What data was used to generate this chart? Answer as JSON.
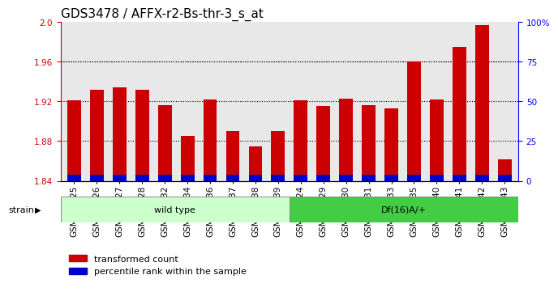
{
  "title": "GDS3478 / AFFX-r2-Bs-thr-3_s_at",
  "samples": [
    "GSM272325",
    "GSM272326",
    "GSM272327",
    "GSM272328",
    "GSM272332",
    "GSM272334",
    "GSM272336",
    "GSM272337",
    "GSM272338",
    "GSM272339",
    "GSM272324",
    "GSM272329",
    "GSM272330",
    "GSM272331",
    "GSM272333",
    "GSM272335",
    "GSM272340",
    "GSM272341",
    "GSM272342",
    "GSM272343"
  ],
  "red_values": [
    1.921,
    1.932,
    1.934,
    1.932,
    1.916,
    1.885,
    1.922,
    1.89,
    1.875,
    1.89,
    1.921,
    1.915,
    1.923,
    1.916,
    1.913,
    1.96,
    1.922,
    1.975,
    1.997,
    1.862
  ],
  "blue_values": [
    0.006,
    0.006,
    0.006,
    0.006,
    0.006,
    0.006,
    0.006,
    0.006,
    0.006,
    0.006,
    0.006,
    0.006,
    0.006,
    0.006,
    0.006,
    0.006,
    0.006,
    0.006,
    0.006,
    0.006
  ],
  "wild_type_count": 10,
  "df_count": 10,
  "ymin": 1.84,
  "ymax": 2.0,
  "yticks": [
    1.84,
    1.88,
    1.92,
    1.96,
    2.0
  ],
  "right_yticks": [
    0,
    25,
    50,
    75,
    100
  ],
  "right_ytick_labels": [
    "0",
    "25",
    "50",
    "75",
    "100%"
  ],
  "bar_width": 0.6,
  "red_color": "#cc0000",
  "blue_color": "#0000cc",
  "wild_type_bg": "#ccffcc",
  "df_bg": "#44cc44",
  "strain_label": "strain",
  "wild_type_label": "wild type",
  "df_label": "Df(16)A/+",
  "legend_red": "transformed count",
  "legend_blue": "percentile rank within the sample",
  "title_fontsize": 11,
  "tick_fontsize": 7.5,
  "label_fontsize": 8
}
